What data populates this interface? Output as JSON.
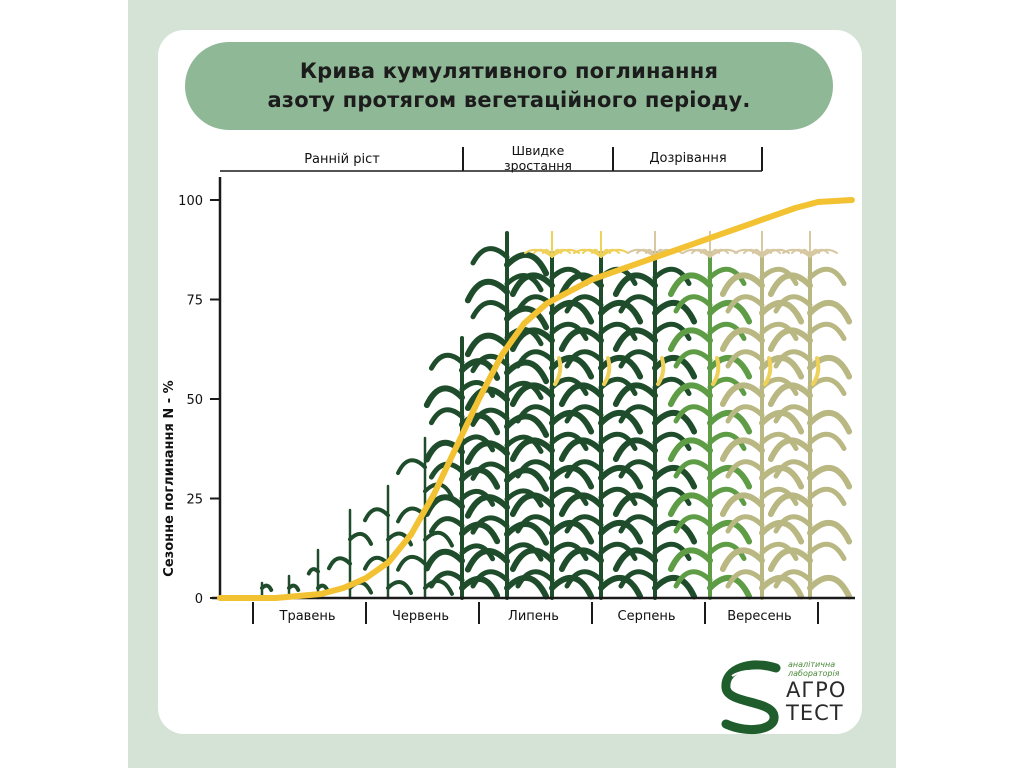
{
  "title_lines": [
    "Крива кумулятивного поглинання",
    "азоту протягом вегетаційного періоду."
  ],
  "colors": {
    "frame": "#d4e3d6",
    "banner": "#8fb897",
    "curve": "#f2c232",
    "plant_dark": "#1f4d2c",
    "plant_mid": "#5e9c45",
    "plant_pale": "#b9b782",
    "tassel_yellow": "#efd15a",
    "tassel_beige": "#d7c8a2",
    "logo_green": "#1f5e2c"
  },
  "logo": {
    "line1": "аналітична",
    "line2": "лабораторія",
    "line3": "АГРО",
    "line4": "ТЕСТ",
    "icon": "s-leaf-logo-icon"
  },
  "chart_data": {
    "type": "area",
    "title": "Крива кумулятивного поглинання азоту протягом вегетаційного періоду.",
    "ylabel": "Сезонне поглинання N - %",
    "xlabel": "",
    "ylim": [
      0,
      100
    ],
    "yticks": [
      0,
      25,
      50,
      75,
      100
    ],
    "months": [
      "Травень",
      "Червень",
      "Липень",
      "Серпень",
      "Вересень"
    ],
    "stages": [
      "Ранній ріст",
      "Швидке зростання",
      "Дозрівання"
    ],
    "grid": false,
    "series": [
      {
        "x": [
          0,
          0.2,
          0.4,
          0.6,
          0.8,
          1.0,
          1.2,
          1.4,
          1.6,
          1.8,
          2.0,
          2.2,
          2.4,
          2.6,
          2.8,
          3.0,
          3.2,
          3.4,
          3.6,
          3.8,
          4.0,
          4.2,
          4.4,
          4.6,
          4.8,
          5.0,
          5.3
        ],
        "y": [
          0,
          0,
          0.5,
          1,
          2.5,
          5,
          9,
          16,
          26,
          38,
          50,
          61,
          69,
          74,
          77,
          80,
          82,
          84,
          86,
          88,
          90,
          92,
          94,
          96,
          98,
          99.5,
          100
        ]
      }
    ]
  }
}
